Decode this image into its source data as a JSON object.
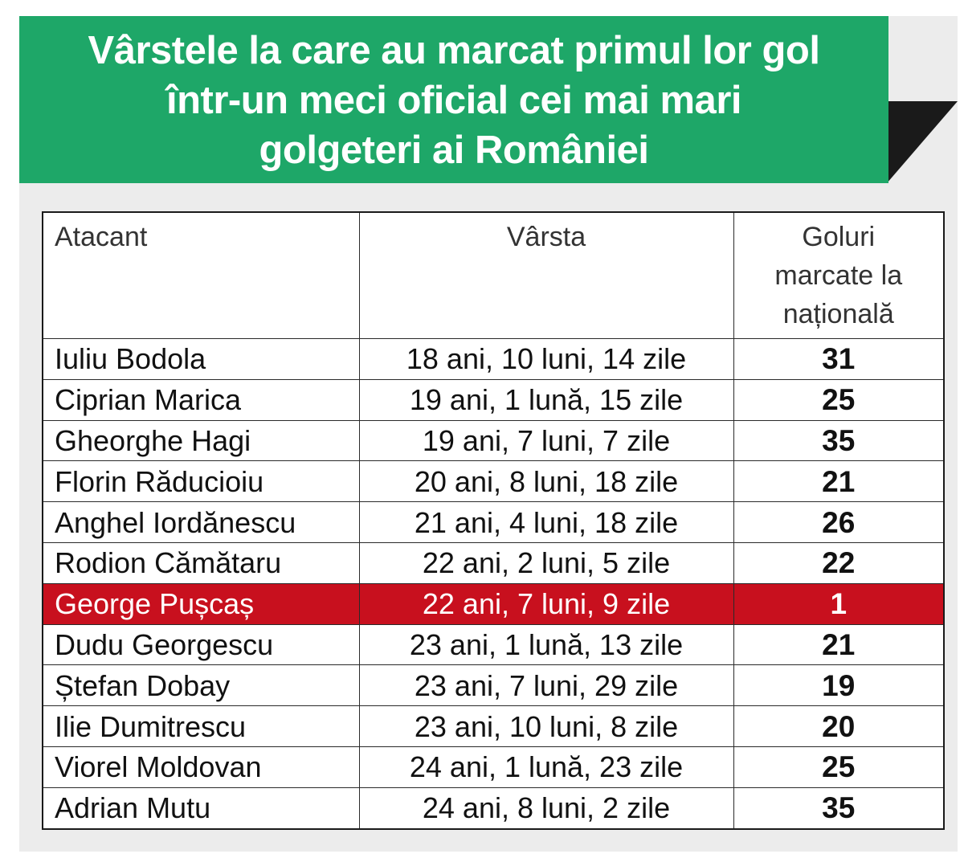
{
  "title": {
    "line1": "Vârstele la care au marcat primul lor gol",
    "line2": "într-un meci oficial cei mai mari",
    "line3": "golgeteri ai României"
  },
  "colors": {
    "title_bg": "#1ea768",
    "highlight_bg": "#c8101e",
    "panel_bg": "#ececec"
  },
  "table": {
    "headers": {
      "atacant": "Atacant",
      "varsta": "Vârsta",
      "goluri_line1": "Goluri",
      "goluri_line2": "marcate la",
      "goluri_line3": "națională"
    },
    "rows": [
      {
        "name": "Iuliu Bodola",
        "age": "18 ani, 10 luni, 14 zile",
        "goals": "31",
        "highlight": false
      },
      {
        "name": "Ciprian Marica",
        "age": "19 ani, 1 lună, 15 zile",
        "goals": "25",
        "highlight": false
      },
      {
        "name": "Gheorghe Hagi",
        "age": "19 ani, 7 luni, 7 zile",
        "goals": "35",
        "highlight": false
      },
      {
        "name": "Florin Răducioiu",
        "age": "20 ani, 8 luni, 18 zile",
        "goals": "21",
        "highlight": false
      },
      {
        "name": "Anghel Iordănescu",
        "age": "21 ani, 4 luni, 18 zile",
        "goals": "26",
        "highlight": false
      },
      {
        "name": "Rodion Cămătaru",
        "age": "22 ani, 2 luni, 5 zile",
        "goals": "22",
        "highlight": false
      },
      {
        "name": "George Pușcaș",
        "age": "22 ani, 7 luni, 9 zile",
        "goals": "1",
        "highlight": true
      },
      {
        "name": "Dudu Georgescu",
        "age": "23 ani, 1 lună, 13 zile",
        "goals": "21",
        "highlight": false
      },
      {
        "name": "Ștefan Dobay",
        "age": "23 ani, 7 luni, 29 zile",
        "goals": "19",
        "highlight": false
      },
      {
        "name": "Ilie Dumitrescu",
        "age": "23 ani, 10 luni, 8 zile",
        "goals": "20",
        "highlight": false
      },
      {
        "name": "Viorel Moldovan",
        "age": "24 ani, 1 lună, 23 zile",
        "goals": "25",
        "highlight": false
      },
      {
        "name": "Adrian Mutu",
        "age": "24 ani, 8 luni, 2 zile",
        "goals": "35",
        "highlight": false
      }
    ]
  }
}
